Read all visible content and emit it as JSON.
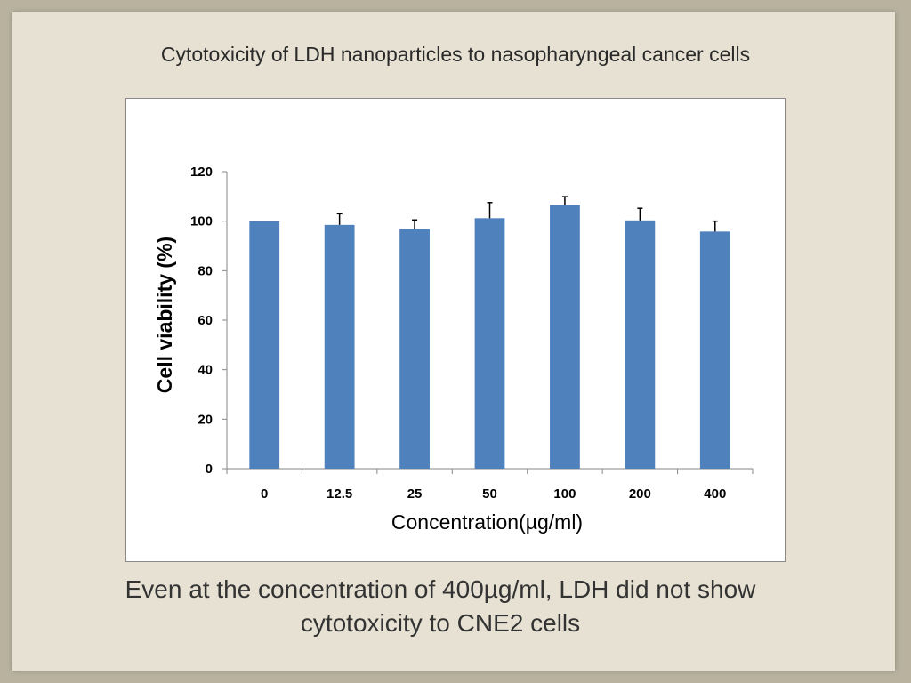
{
  "slide": {
    "title": "Cytotoxicity of LDH nanoparticles to nasopharyngeal cancer cells",
    "caption_line1": "Even at the concentration of 400µg/ml, LDH did not show",
    "caption_line2": "cytotoxicity to CNE2 cells"
  },
  "colors": {
    "bar": "#4f81bd",
    "error_bar": "#000000",
    "axis": "#868686",
    "background": "#e6e1d2"
  },
  "chart_data": {
    "type": "bar",
    "title": "",
    "xlabel": "Concentration(µg/ml)",
    "ylabel": "Cell viability (%)",
    "categories": [
      "0",
      "12.5",
      "25",
      "50",
      "100",
      "200",
      "400"
    ],
    "values": [
      100,
      98.5,
      96.8,
      101.2,
      106.5,
      100.3,
      95.8
    ],
    "error_plus": [
      0,
      4.5,
      3.7,
      6.3,
      3.4,
      4.9,
      4.2
    ],
    "ylim": [
      0,
      120
    ],
    "yticks": [
      0,
      20,
      40,
      60,
      80,
      100,
      120
    ],
    "grid": false,
    "legend": "none"
  }
}
